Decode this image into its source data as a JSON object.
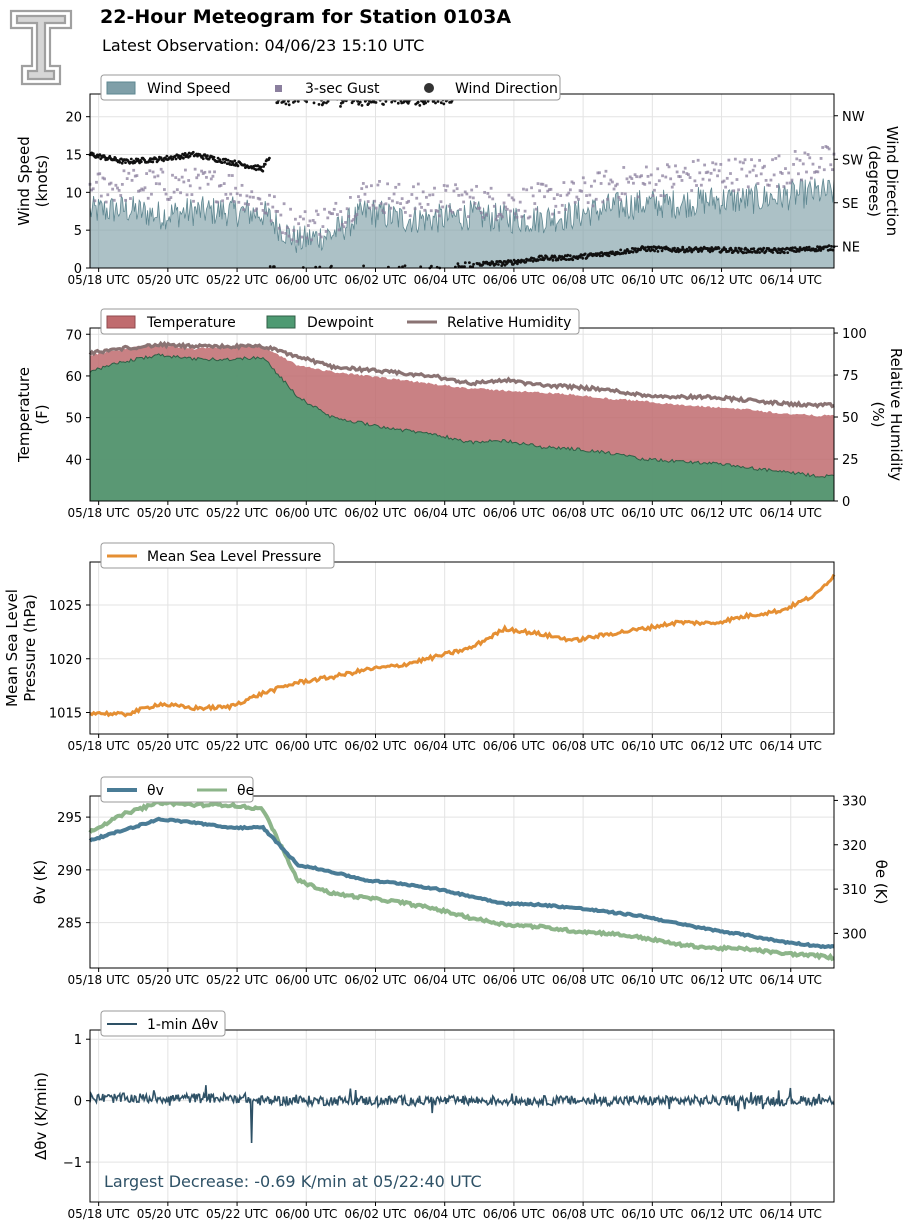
{
  "header": {
    "title": "22-Hour Meteogram for Station 0103A",
    "subtitle": "Latest Observation: 04/06/23 15:10 UTC",
    "logo": "texas-tech-double-t-logo"
  },
  "colors": {
    "wind_speed": "#7f9fa8",
    "gust": "#8b7f9e",
    "wind_dir": "#111111",
    "temperature": "#c06b6e",
    "dewpoint": "#4e9a72",
    "rh": "#8a7373",
    "pressure": "#e58f33",
    "theta_v": "#4a7c96",
    "theta_e": "#8db58a",
    "dtheta": "#2e5166",
    "annotation": "#2e5166"
  },
  "time_ticks": [
    "05/18 UTC",
    "05/20 UTC",
    "05/22 UTC",
    "06/00 UTC",
    "06/02 UTC",
    "06/04 UTC",
    "06/06 UTC",
    "06/08 UTC",
    "06/10 UTC",
    "06/12 UTC",
    "06/14 UTC"
  ],
  "chart_data": [
    {
      "type": "area",
      "name": "wind",
      "ylabel": "Wind Speed\n(knots)",
      "y2label": "Wind Direction\n(degrees)",
      "ylim": [
        0,
        23
      ],
      "yticks": [
        0,
        5,
        10,
        15,
        20
      ],
      "y2ticks": [
        "NE",
        "SE",
        "SW",
        "NW"
      ],
      "y2tick_values": [
        45,
        135,
        225,
        315
      ],
      "y2lim": [
        0,
        360
      ],
      "grid": true,
      "legend": [
        "Wind Speed",
        "3-sec Gust",
        "Wind Direction"
      ],
      "legend_position": "top-left",
      "x_hours": [
        0,
        1,
        2,
        3,
        4,
        5,
        6,
        7,
        8,
        9,
        10,
        11,
        12,
        13,
        14,
        15,
        16,
        17,
        18,
        19,
        20,
        21,
        21.5
      ],
      "series": [
        {
          "name": "Wind Speed",
          "values": [
            7.5,
            7.8,
            7.0,
            7.5,
            7.5,
            7.2,
            3.5,
            4.5,
            7.5,
            6.5,
            6.5,
            7.0,
            6.5,
            6.5,
            7.0,
            8.0,
            8.5,
            8.5,
            9.0,
            9.0,
            9.5,
            10.0,
            10.0
          ]
        },
        {
          "name": "3-sec Gust",
          "values": [
            10.0,
            10.5,
            10.5,
            10.5,
            10.5,
            8.0,
            5.0,
            6.0,
            9.5,
            8.5,
            8.5,
            8.5,
            8.0,
            8.5,
            9.0,
            10.5,
            11.0,
            11.5,
            12.0,
            12.0,
            12.5,
            13.5,
            13.5
          ]
        },
        {
          "name": "Wind Direction",
          "values": [
            235,
            220,
            225,
            235,
            220,
            205,
            345,
            360,
            355,
            350,
            340,
            8,
            10,
            20,
            22,
            30,
            40,
            38,
            38,
            36,
            36,
            40,
            42
          ]
        }
      ]
    },
    {
      "type": "area",
      "name": "temperature",
      "ylabel": "Temperature\n(F)",
      "y2label": "Relative Humidity\n(%)",
      "ylim": [
        30,
        71.5
      ],
      "yticks": [
        40,
        50,
        60,
        70
      ],
      "y2lim": [
        0,
        103
      ],
      "y2ticks": [
        0,
        25,
        50,
        75,
        100
      ],
      "grid": true,
      "legend": [
        "Temperature",
        "Dewpoint",
        "Relative Humidity"
      ],
      "legend_position": "top-left",
      "x_hours": [
        0,
        1,
        2,
        3,
        4,
        5,
        6,
        7,
        8,
        9,
        10,
        11,
        12,
        13,
        14,
        15,
        16,
        17,
        18,
        19,
        20,
        21,
        21.5
      ],
      "series": [
        {
          "name": "Temperature",
          "values": [
            65.0,
            66.5,
            67.5,
            66.5,
            67.0,
            67.0,
            62.5,
            61.0,
            60.0,
            59.0,
            58.0,
            57.0,
            56.5,
            56.0,
            55.5,
            54.5,
            54.0,
            53.0,
            52.5,
            52.0,
            51.0,
            50.5,
            50.5
          ]
        },
        {
          "name": "Dewpoint",
          "values": [
            61.0,
            63.5,
            65.0,
            64.0,
            64.0,
            64.5,
            55.0,
            50.0,
            48.5,
            47.0,
            46.0,
            44.0,
            44.5,
            43.0,
            42.5,
            41.5,
            40.0,
            39.5,
            39.0,
            38.0,
            37.0,
            36.0,
            36.0
          ]
        },
        {
          "name": "Relative Humidity",
          "values": [
            88,
            91,
            93,
            92,
            92,
            92,
            86,
            80,
            78,
            76,
            74,
            70,
            72,
            69,
            68,
            66,
            63,
            62,
            62,
            60,
            58,
            57,
            57
          ]
        }
      ]
    },
    {
      "type": "line",
      "name": "pressure",
      "ylabel": "Mean Sea Level\nPressure (hPa)",
      "ylim": [
        1013,
        1029
      ],
      "yticks": [
        1015,
        1020,
        1025
      ],
      "grid": true,
      "legend": [
        "Mean Sea Level Pressure"
      ],
      "legend_position": "top-left",
      "x_hours": [
        0,
        1,
        2,
        3,
        4,
        5,
        6,
        7,
        8,
        9,
        10,
        11,
        12,
        13,
        14,
        15,
        16,
        17,
        18,
        19,
        20,
        21,
        21.5
      ],
      "series": [
        {
          "name": "Mean Sea Level Pressure",
          "values": [
            1015.0,
            1014.8,
            1015.8,
            1015.4,
            1015.5,
            1016.8,
            1017.8,
            1018.3,
            1019.0,
            1019.4,
            1020.2,
            1021.0,
            1022.8,
            1022.3,
            1021.7,
            1022.3,
            1022.8,
            1023.4,
            1023.3,
            1024.0,
            1024.5,
            1026.0,
            1027.8
          ]
        }
      ]
    },
    {
      "type": "line",
      "name": "theta",
      "ylabel": "θv (K)",
      "y2label": "θe (K)",
      "ylim": [
        280.7,
        297
      ],
      "yticks": [
        285,
        290,
        295
      ],
      "y2lim": [
        292.2,
        331
      ],
      "y2ticks": [
        300,
        310,
        320,
        330
      ],
      "grid": true,
      "legend": [
        "θv",
        "θe"
      ],
      "legend_position": "top-left",
      "x_hours": [
        0,
        1,
        2,
        3,
        4,
        5,
        6,
        7,
        8,
        9,
        10,
        11,
        12,
        13,
        14,
        15,
        16,
        17,
        18,
        19,
        20,
        21,
        21.5
      ],
      "series": [
        {
          "name": "θv",
          "values": [
            292.8,
            293.8,
            294.8,
            294.5,
            294.0,
            294.0,
            290.5,
            289.8,
            289.0,
            288.7,
            288.2,
            287.5,
            286.8,
            286.7,
            286.4,
            286.0,
            285.6,
            284.9,
            284.3,
            283.8,
            283.2,
            282.8,
            282.7
          ]
        },
        {
          "name": "θe",
          "values": [
            323,
            327,
            329.5,
            329,
            329,
            328,
            312,
            309,
            308,
            307,
            305.5,
            303.5,
            302,
            301.5,
            300.5,
            300,
            299,
            297.5,
            296.7,
            296.5,
            295.5,
            295,
            294.5
          ]
        }
      ]
    },
    {
      "type": "line",
      "name": "delta-theta",
      "ylabel": "Δθv (K/min)",
      "ylim": [
        -1.65,
        1.15
      ],
      "yticks": [
        1,
        0,
        -1
      ],
      "grid": true,
      "legend": [
        "1-min Δθv"
      ],
      "legend_position": "top-left",
      "annotation": "Largest Decrease: -0.69 K/min at 05/22:40 UTC",
      "min_value": -0.69,
      "min_x_hours": 4.67,
      "series": [
        {
          "name": "1-min Δθv",
          "values": [
            0.05,
            0.05,
            0.05,
            0.05,
            0.05,
            0.05,
            -0.05,
            0.0,
            0.0,
            0.0,
            0.0,
            0.0,
            0.0,
            0.0,
            0.0,
            0.0,
            0.0,
            0.0,
            0.0,
            0.0,
            0.0,
            0.0,
            0.0
          ]
        }
      ]
    }
  ]
}
